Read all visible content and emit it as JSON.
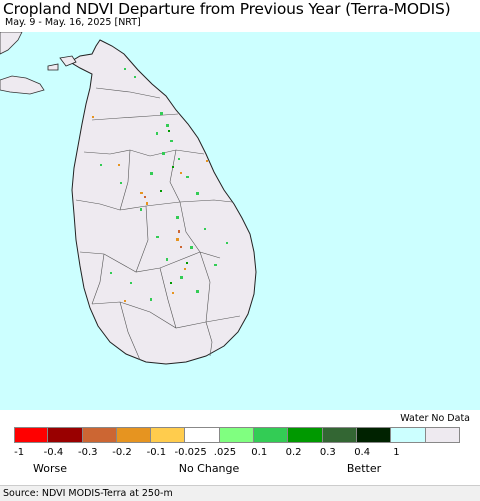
{
  "header": {
    "title": "Cropland NDVI Departure from Previous Year (Terra-MODIS)",
    "date_range": "May. 9 - May. 16, 2025 [NRT]"
  },
  "legend": {
    "no_data_label": "Water No Data",
    "swatch_colors": [
      "#ff0000",
      "#990000",
      "#cc6633",
      "#e69420",
      "#ffcc4d",
      "#ffffff",
      "#80ff80",
      "#33cc55",
      "#009900",
      "#336633",
      "#002200",
      "#ccffff",
      "#eeeaf0"
    ],
    "ticks": [
      "-1",
      "-0.4",
      "-0.3",
      "-0.2",
      "-0.1",
      "-0.025",
      ".025",
      "0.1",
      "0.2",
      "0.3",
      "0.4",
      "1"
    ],
    "captions": {
      "worse": "Worse",
      "no_change": "No Change",
      "better": "Better"
    }
  },
  "map": {
    "water_color": "#ccffff",
    "land_color": "#eeeaf0",
    "boundary_color": "#333333"
  },
  "footer": {
    "source": "Source: NDVI MODIS-Terra at 250-m"
  }
}
